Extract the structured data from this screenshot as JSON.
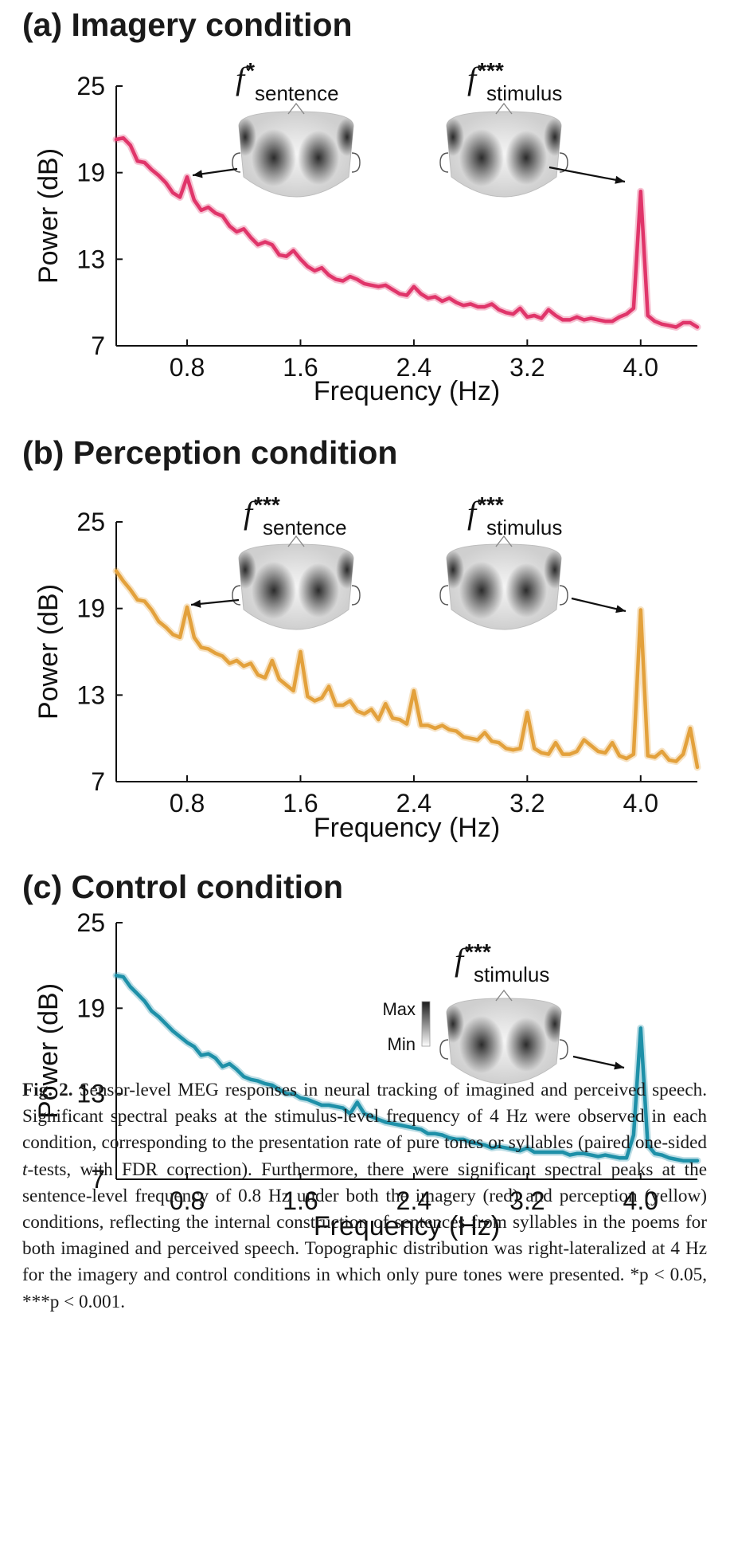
{
  "panels": [
    {
      "title": "(a) Imagery condition",
      "color": "#e0356a",
      "ylabel": "Power (dB)",
      "xlabel": "Frequency (Hz)",
      "yticks": [
        "25",
        "19",
        "13",
        "7"
      ],
      "xticks": [
        "0.8",
        "1.6",
        "2.4",
        "3.2",
        "4.0"
      ],
      "annotations": [
        {
          "sub": "sentence",
          "stars": "*"
        },
        {
          "sub": "stimulus",
          "stars": "***"
        }
      ]
    },
    {
      "title": "(b) Perception condition",
      "color": "#e3a13c",
      "ylabel": "Power (dB)",
      "xlabel": "Frequency (Hz)",
      "yticks": [
        "25",
        "19",
        "13",
        "7"
      ],
      "xticks": [
        "0.8",
        "1.6",
        "2.4",
        "3.2",
        "4.0"
      ],
      "annotations": [
        {
          "sub": "sentence",
          "stars": "***"
        },
        {
          "sub": "stimulus",
          "stars": "***"
        }
      ]
    },
    {
      "title": "(c) Control condition",
      "color": "#1e90a8",
      "ylabel": "Power (dB)",
      "xlabel": "Frequency (Hz)",
      "yticks": [
        "25",
        "19",
        "13",
        "7"
      ],
      "xticks": [
        "0.8",
        "1.6",
        "2.4",
        "3.2",
        "4.0"
      ],
      "annotations": [
        {
          "sub": "stimulus",
          "stars": "***"
        }
      ],
      "colorbar": {
        "max_label": "Max",
        "min_label": "Min"
      }
    }
  ],
  "chart_data": [
    {
      "type": "line",
      "title": "(a) Imagery condition",
      "xlabel": "Frequency (Hz)",
      "ylabel": "Power (dB)",
      "xlim": [
        0.3,
        4.4
      ],
      "ylim": [
        7,
        25
      ],
      "series": [
        {
          "x": [
            0.3,
            0.35,
            0.4,
            0.45,
            0.5,
            0.55,
            0.6,
            0.65,
            0.7,
            0.75,
            0.8,
            0.85,
            0.9,
            0.95,
            1.0,
            1.05,
            1.1,
            1.15,
            1.2,
            1.25,
            1.3,
            1.35,
            1.4,
            1.45,
            1.5,
            1.55,
            1.6,
            1.65,
            1.7,
            1.75,
            1.8,
            1.85,
            1.9,
            1.95,
            2.0,
            2.05,
            2.1,
            2.15,
            2.2,
            2.25,
            2.3,
            2.35,
            2.4,
            2.45,
            2.5,
            2.55,
            2.6,
            2.65,
            2.7,
            2.75,
            2.8,
            2.85,
            2.9,
            2.95,
            3.0,
            3.05,
            3.1,
            3.15,
            3.2,
            3.25,
            3.3,
            3.35,
            3.4,
            3.45,
            3.5,
            3.55,
            3.6,
            3.65,
            3.7,
            3.75,
            3.8,
            3.85,
            3.9,
            3.95,
            4.0,
            4.05,
            4.1,
            4.15,
            4.2,
            4.25,
            4.3,
            4.35,
            4.4
          ],
          "y": [
            21.3,
            21.4,
            20.9,
            19.8,
            19.7,
            19.2,
            18.8,
            18.3,
            17.6,
            17.3,
            18.7,
            17.1,
            16.4,
            16.6,
            16.2,
            16.0,
            15.3,
            14.9,
            15.1,
            14.5,
            14.0,
            14.2,
            14.0,
            13.3,
            13.2,
            13.6,
            13.0,
            12.5,
            12.2,
            12.4,
            11.9,
            11.6,
            11.5,
            11.8,
            11.6,
            11.3,
            11.2,
            11.1,
            11.2,
            10.9,
            10.6,
            10.5,
            11.1,
            10.6,
            10.3,
            10.4,
            10.1,
            10.3,
            10.0,
            9.8,
            9.9,
            9.7,
            9.7,
            9.9,
            9.5,
            9.3,
            9.2,
            9.6,
            9.0,
            9.1,
            8.9,
            9.5,
            9.1,
            8.8,
            8.8,
            9.0,
            8.8,
            8.9,
            8.8,
            8.7,
            8.7,
            9.0,
            9.2,
            9.6,
            17.7,
            9.1,
            8.7,
            8.5,
            8.4,
            8.3,
            8.6,
            8.6,
            8.3
          ]
        }
      ]
    },
    {
      "type": "line",
      "title": "(b) Perception condition",
      "xlabel": "Frequency (Hz)",
      "ylabel": "Power (dB)",
      "xlim": [
        0.3,
        4.4
      ],
      "ylim": [
        7,
        25
      ],
      "series": [
        {
          "x": [
            0.3,
            0.35,
            0.4,
            0.45,
            0.5,
            0.55,
            0.6,
            0.65,
            0.7,
            0.75,
            0.8,
            0.85,
            0.9,
            0.95,
            1.0,
            1.05,
            1.1,
            1.15,
            1.2,
            1.25,
            1.3,
            1.35,
            1.4,
            1.45,
            1.5,
            1.55,
            1.6,
            1.65,
            1.7,
            1.75,
            1.8,
            1.85,
            1.9,
            1.95,
            2.0,
            2.05,
            2.1,
            2.15,
            2.2,
            2.25,
            2.3,
            2.35,
            2.4,
            2.45,
            2.5,
            2.55,
            2.6,
            2.65,
            2.7,
            2.75,
            2.8,
            2.85,
            2.9,
            2.95,
            3.0,
            3.05,
            3.1,
            3.15,
            3.2,
            3.25,
            3.3,
            3.35,
            3.4,
            3.45,
            3.5,
            3.55,
            3.6,
            3.65,
            3.7,
            3.75,
            3.8,
            3.85,
            3.9,
            3.95,
            4.0,
            4.05,
            4.1,
            4.15,
            4.2,
            4.25,
            4.3,
            4.35,
            4.4
          ],
          "y": [
            21.6,
            20.9,
            20.3,
            19.6,
            19.5,
            18.9,
            18.1,
            17.7,
            17.2,
            17.0,
            19.1,
            17.0,
            16.3,
            16.2,
            15.9,
            15.7,
            15.2,
            15.4,
            15.0,
            15.2,
            14.4,
            14.2,
            15.4,
            14.1,
            13.7,
            13.3,
            16.0,
            12.9,
            12.6,
            12.8,
            13.6,
            12.3,
            12.3,
            12.6,
            11.9,
            11.7,
            12.0,
            11.3,
            12.4,
            11.4,
            11.3,
            11.0,
            13.3,
            10.9,
            10.9,
            10.7,
            10.9,
            10.6,
            10.5,
            10.1,
            10.0,
            9.9,
            10.4,
            9.8,
            9.7,
            9.3,
            9.2,
            9.3,
            11.8,
            9.3,
            9.0,
            8.9,
            9.7,
            8.9,
            8.9,
            9.1,
            9.9,
            9.5,
            9.1,
            9.0,
            9.7,
            8.8,
            8.6,
            8.9,
            18.9,
            8.8,
            8.7,
            9.1,
            8.5,
            8.4,
            8.9,
            10.7,
            8.0
          ]
        }
      ]
    },
    {
      "type": "line",
      "title": "(c) Control condition",
      "xlabel": "Frequency (Hz)",
      "ylabel": "Power (dB)",
      "xlim": [
        0.3,
        4.4
      ],
      "ylim": [
        7,
        25
      ],
      "series": [
        {
          "x": [
            0.3,
            0.35,
            0.4,
            0.45,
            0.5,
            0.55,
            0.6,
            0.65,
            0.7,
            0.75,
            0.8,
            0.85,
            0.9,
            0.95,
            1.0,
            1.05,
            1.1,
            1.15,
            1.2,
            1.25,
            1.3,
            1.35,
            1.4,
            1.45,
            1.5,
            1.55,
            1.6,
            1.65,
            1.7,
            1.75,
            1.8,
            1.85,
            1.9,
            1.95,
            2.0,
            2.05,
            2.1,
            2.15,
            2.2,
            2.25,
            2.3,
            2.35,
            2.4,
            2.45,
            2.5,
            2.55,
            2.6,
            2.65,
            2.7,
            2.75,
            2.8,
            2.85,
            2.9,
            2.95,
            3.0,
            3.05,
            3.1,
            3.15,
            3.2,
            3.25,
            3.3,
            3.35,
            3.4,
            3.45,
            3.5,
            3.55,
            3.6,
            3.65,
            3.7,
            3.75,
            3.8,
            3.85,
            3.9,
            3.95,
            4.0,
            4.05,
            4.1,
            4.15,
            4.2,
            4.25,
            4.3,
            4.35,
            4.4
          ],
          "y": [
            21.3,
            21.2,
            20.5,
            20.0,
            19.5,
            18.8,
            18.4,
            17.9,
            17.4,
            17.0,
            16.6,
            16.3,
            15.7,
            15.8,
            15.5,
            14.9,
            15.1,
            14.7,
            14.2,
            14.0,
            13.9,
            13.7,
            13.6,
            13.3,
            13.0,
            13.0,
            12.7,
            12.6,
            12.4,
            12.2,
            12.2,
            12.1,
            12.0,
            11.6,
            12.4,
            11.6,
            11.4,
            11.2,
            11.0,
            10.9,
            10.8,
            10.7,
            10.6,
            10.5,
            10.2,
            10.2,
            10.1,
            9.9,
            9.8,
            9.8,
            9.6,
            9.5,
            9.4,
            9.2,
            9.3,
            9.2,
            9.1,
            9.0,
            9.2,
            8.9,
            8.9,
            8.9,
            8.9,
            8.9,
            8.7,
            8.8,
            8.8,
            8.7,
            8.6,
            8.7,
            8.6,
            8.5,
            8.5,
            10.1,
            17.6,
            9.4,
            8.8,
            8.7,
            8.5,
            8.4,
            8.3,
            8.3,
            8.3
          ]
        }
      ]
    }
  ],
  "caption": {
    "label": "Fig. 2.",
    "text": "Sensor-level MEG responses in neural tracking of imagined and perceived speech. Significant spectral peaks at the stimulus-level frequency of 4 Hz were observed in each condition, corresponding to the presentation rate of pure tones or syllables (paired one-sided",
    "t_italic": "t",
    "text2": "-tests, with FDR correction). Furthermore, there were significant spectral peaks at the sentence-level frequency of 0.8 Hz under both the imagery (red) and perception (yellow) conditions, reflecting the internal construction of sentences from syllables in the poems for both imagined and perceived speech. Topographic distribution was right-lateralized at 4 Hz for the imagery and control conditions in which only pure tones were presented.",
    "sig1": "*p < 0.05,",
    "sig2": "***p < 0.001."
  }
}
